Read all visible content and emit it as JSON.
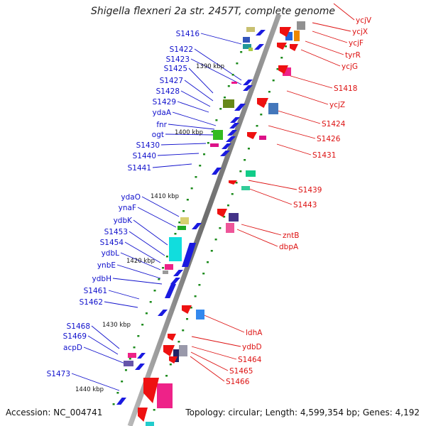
{
  "title": "Shigella flexneri 2a str. 2457T, complete genome",
  "accession": "Accession: NC_004741",
  "summary": "Topology: circular; Length: 4,599,354 bp; Genes: 4,192",
  "colors": {
    "backbone": "#808080",
    "left_label": "#1010cc",
    "right_label": "#dd1111",
    "forward_arrow": "#1a1ae0",
    "reverse_arrow": "#ee1111",
    "tick": "#1a8a1a"
  },
  "scale_labels": [
    "1390 kbp",
    "1400 kbp",
    "1410 kbp",
    "1420 kbp",
    "1430 kbp",
    "1440 kbp"
  ],
  "left_genes": [
    "S1416",
    "S1422",
    "S1423",
    "S1425",
    "S1427",
    "S1428",
    "S1429",
    "ydaA",
    "fnr",
    "ogt",
    "S1430",
    "S1440",
    "S1441",
    "ydaO",
    "ynaF",
    "ydbK",
    "S1453",
    "S1454",
    "ydbL",
    "ynbE",
    "ydbH",
    "S1461",
    "S1462",
    "S1468",
    "S1469",
    "acpD",
    "S1473"
  ],
  "right_genes": [
    "ycjV",
    "ycjX",
    "ycjF",
    "tyrR",
    "ycjG",
    "S1418",
    "ycjZ",
    "S1424",
    "S1426",
    "S1431",
    "S1439",
    "S1443",
    "zntB",
    "dbpA",
    "ldhA",
    "ydbD",
    "S1464",
    "S1465",
    "S1466"
  ]
}
